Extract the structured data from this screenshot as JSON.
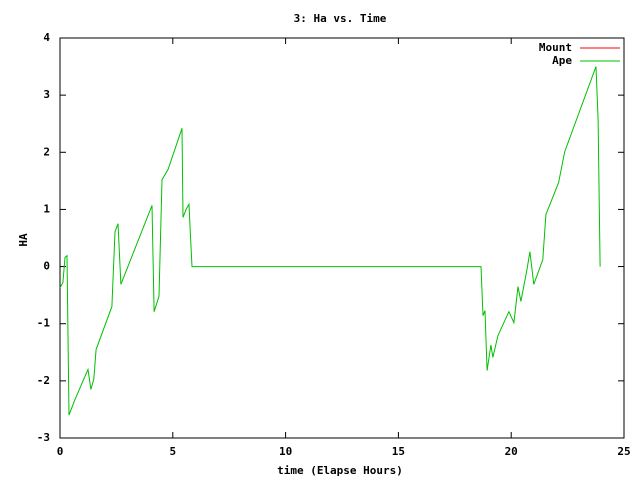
{
  "chart_data": {
    "type": "line",
    "title": "3: Ha vs. Time",
    "xlabel": "time (Elapse Hours)",
    "ylabel": "HA",
    "xlim": [
      0,
      25
    ],
    "ylim": [
      -3,
      4
    ],
    "xticks": [
      0,
      5,
      10,
      15,
      20,
      25
    ],
    "yticks": [
      -3,
      -2,
      -1,
      0,
      1,
      2,
      3,
      4
    ],
    "legend": "top-right",
    "series": [
      {
        "name": "Mount",
        "color": "#ff0000",
        "x": [],
        "values": []
      },
      {
        "name": "Ape",
        "color": "#00c000",
        "x": [
          0,
          0.13,
          0.22,
          0.31,
          0.4,
          0.66,
          1.24,
          1.37,
          1.5,
          1.6,
          2.3,
          2.44,
          2.57,
          2.7,
          4.08,
          4.17,
          4.39,
          4.52,
          4.79,
          5.41,
          5.45,
          5.59,
          5.72,
          5.76,
          5.85,
          18.66,
          18.75,
          18.84,
          18.93,
          19.1,
          19.19,
          19.41,
          19.9,
          20.12,
          20.3,
          20.43,
          20.7,
          20.83,
          21.0,
          21.4,
          21.54,
          22.1,
          22.37,
          23.76,
          23.85,
          23.94
        ],
        "values": [
          -0.37,
          -0.28,
          0.16,
          0.19,
          -2.6,
          -2.33,
          -1.8,
          -2.15,
          -1.97,
          -1.45,
          -0.7,
          0.61,
          0.75,
          -0.31,
          1.07,
          -0.79,
          -0.52,
          1.52,
          1.7,
          2.42,
          0.86,
          1.0,
          1.09,
          0.74,
          0,
          0,
          -0.86,
          -0.77,
          -1.82,
          -1.37,
          -1.59,
          -1.21,
          -0.79,
          -0.98,
          -0.35,
          -0.61,
          -0.05,
          0.26,
          -0.31,
          0.12,
          0.91,
          1.47,
          2.01,
          3.5,
          2.57,
          0
        ]
      }
    ]
  }
}
